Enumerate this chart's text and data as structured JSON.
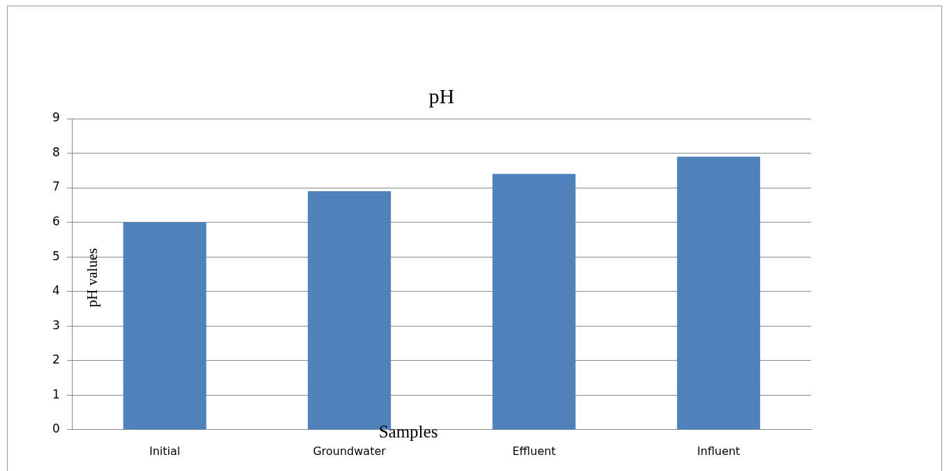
{
  "chart_data": {
    "type": "bar",
    "title": "pH",
    "xlabel": "Samples",
    "ylabel": "pH values",
    "categories": [
      "Initial",
      "Groundwater",
      "Effluent",
      "Influent"
    ],
    "values": [
      6.0,
      6.9,
      7.4,
      7.9
    ],
    "color": "#4f81bd",
    "ylim": [
      0,
      9
    ],
    "yticks": [
      0,
      1,
      2,
      3,
      4,
      5,
      6,
      7,
      8,
      9
    ],
    "grid": "y"
  }
}
